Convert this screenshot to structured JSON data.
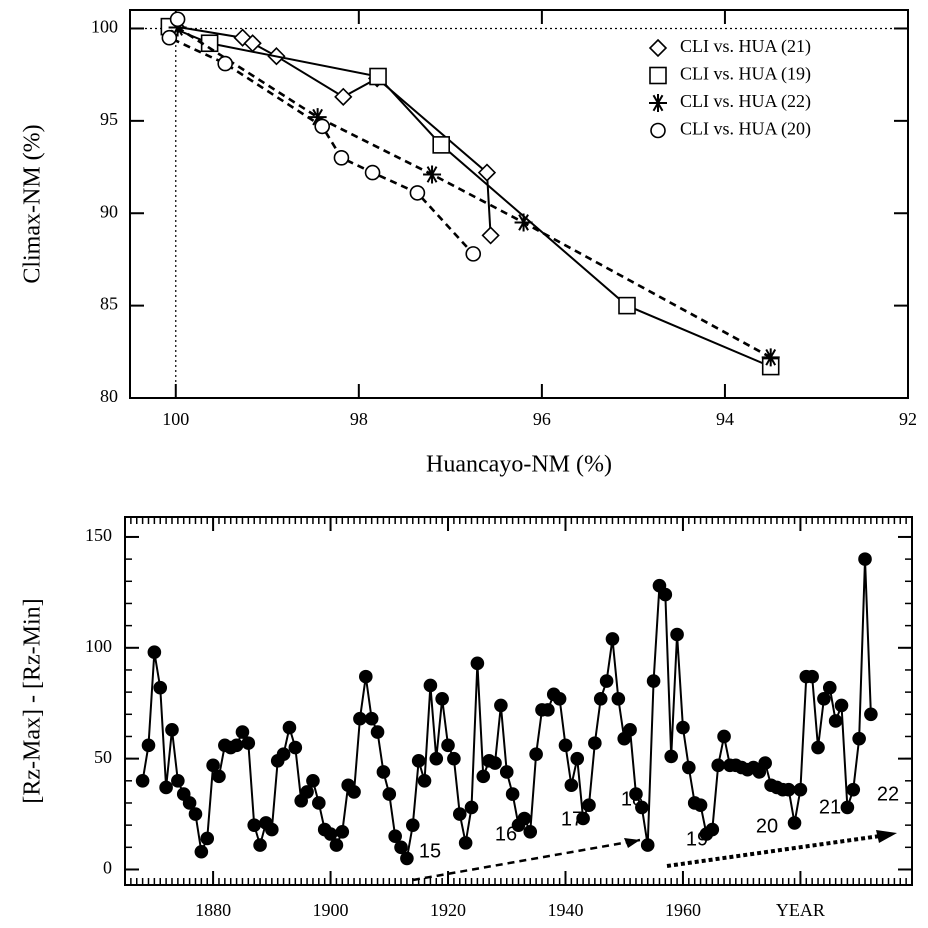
{
  "chart_data": [
    {
      "type": "line",
      "xlabel": "Huancayo-NM (%)",
      "ylabel": "Climax-NM (%)",
      "xlim": [
        100.5,
        92
      ],
      "ylim": [
        80,
        101
      ],
      "xticks": [
        100,
        98,
        96,
        94,
        92
      ],
      "yticks": [
        80,
        85,
        90,
        95,
        100
      ],
      "vlines": [
        100
      ],
      "hlines": [
        100
      ],
      "legend": "upper right",
      "series": [
        {
          "name": "CLI vs. HUA (21)",
          "color": "#000000",
          "marker": "diamond",
          "linestyle": "solid",
          "x": [
            100,
            99.27,
            99.16,
            98.9,
            98.17,
            97.8,
            96.6,
            96.56
          ],
          "values": [
            100.1,
            99.5,
            99.2,
            98.5,
            96.3,
            97.3,
            92.2,
            88.8
          ]
        },
        {
          "name": "CLI vs. HUA (19)",
          "color": "#000000",
          "marker": "square",
          "linestyle": "solid",
          "x": [
            100.07,
            99.63,
            97.79,
            97.1,
            95.07,
            93.5
          ],
          "values": [
            100.1,
            99.2,
            97.4,
            93.7,
            85.0,
            81.7
          ]
        },
        {
          "name": "CLI vs. HUA (22)",
          "color": "#000000",
          "marker": "star",
          "linestyle": "dashed",
          "x": [
            99.98,
            98.45,
            97.2,
            96.2,
            93.5
          ],
          "values": [
            100.05,
            95.2,
            92.1,
            89.5,
            82.2
          ]
        },
        {
          "name": "CLI vs. HUA (20)",
          "color": "#000000",
          "marker": "circle",
          "linestyle": "dashed",
          "x": [
            99.98,
            100.07,
            99.46,
            98.4,
            98.19,
            97.85,
            97.36,
            96.75
          ],
          "values": [
            100.5,
            99.5,
            98.1,
            94.7,
            93.0,
            92.2,
            91.1,
            87.8
          ]
        }
      ]
    },
    {
      "type": "line",
      "ylabel": "[Rz-Max] - [Rz-Min]",
      "xlim": [
        1865,
        1999
      ],
      "ylim": [
        -7,
        159
      ],
      "xticks": [
        1880,
        1900,
        1920,
        1940,
        1960,
        {
          "value": 1980,
          "label": "YEAR"
        }
      ],
      "yticks": [
        0,
        50,
        100,
        150
      ],
      "annotations": [
        "15",
        "16",
        "17",
        "18",
        "19",
        "20",
        "21",
        "22"
      ],
      "series": [
        {
          "color": "#000000",
          "marker": "filled-circle",
          "linestyle": "solid",
          "x": [
            1868,
            1869,
            1870,
            1871,
            1872,
            1873,
            1874,
            1875,
            1876,
            1877,
            1878,
            1879,
            1880,
            1881,
            1882,
            1883,
            1884,
            1885,
            1886,
            1887,
            1888,
            1889,
            1890,
            1891,
            1892,
            1893,
            1894,
            1895,
            1896,
            1897,
            1898,
            1899,
            1900,
            1901,
            1902,
            1903,
            1904,
            1905,
            1906,
            1907,
            1908,
            1909,
            1910,
            1911,
            1912,
            1913,
            1914,
            1915,
            1916,
            1917,
            1918,
            1919,
            1920,
            1921,
            1922,
            1923,
            1924,
            1925,
            1926,
            1927,
            1928,
            1929,
            1930,
            1931,
            1932,
            1933,
            1934,
            1935,
            1936,
            1937,
            1938,
            1939,
            1940,
            1941,
            1942,
            1943,
            1944,
            1945,
            1946,
            1947,
            1948,
            1949,
            1950,
            1951,
            1952,
            1953,
            1954,
            1955,
            1956,
            1957,
            1958,
            1959,
            1960,
            1961,
            1962,
            1963,
            1964,
            1965,
            1966,
            1967,
            1968,
            1969,
            1970,
            1971,
            1972,
            1973,
            1974,
            1975,
            1976,
            1977,
            1978,
            1979,
            1980,
            1981,
            1982,
            1983,
            1984,
            1985,
            1986,
            1987,
            1988,
            1989,
            1990,
            1991,
            1992
          ],
          "values": [
            40,
            56,
            98,
            82,
            37,
            63,
            40,
            34,
            30,
            25,
            8,
            14,
            47,
            42,
            56,
            55,
            56,
            62,
            57,
            20,
            11,
            21,
            18,
            49,
            52,
            64,
            55,
            31,
            35,
            40,
            30,
            18,
            16,
            11,
            17,
            38,
            35,
            68,
            87,
            68,
            62,
            44,
            34,
            15,
            10,
            5,
            20,
            49,
            40,
            83,
            50,
            77,
            56,
            50,
            25,
            12,
            28,
            93,
            42,
            49,
            48,
            74,
            44,
            34,
            20,
            23,
            17,
            52,
            72,
            72,
            79,
            77,
            56,
            38,
            50,
            23,
            29,
            57,
            77,
            85,
            104,
            77,
            59,
            63,
            34,
            28,
            11,
            85,
            128,
            124,
            51,
            106,
            64,
            46,
            30,
            29,
            16,
            18,
            47,
            60,
            47,
            47,
            46,
            45,
            46,
            44,
            48,
            38,
            37,
            36,
            36,
            21,
            36,
            87,
            87,
            55,
            77,
            82,
            67,
            74,
            28,
            36,
            59,
            140,
            70
          ]
        }
      ]
    }
  ]
}
